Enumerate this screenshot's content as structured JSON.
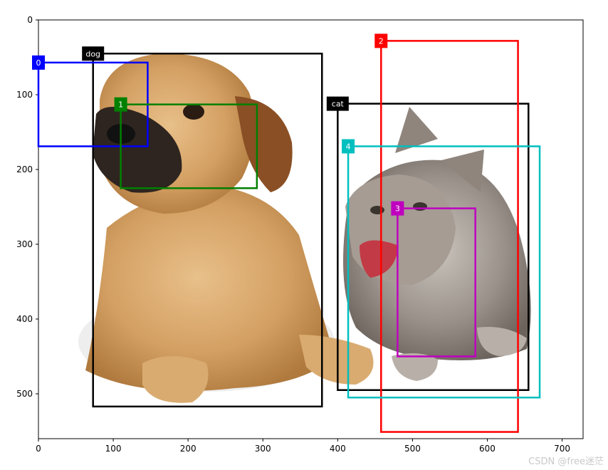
{
  "axes": {
    "xlim": [
      0,
      728
    ],
    "ylim": [
      560,
      0
    ],
    "x_ticks": [
      0,
      100,
      200,
      300,
      400,
      500,
      600,
      700
    ],
    "y_ticks": [
      0,
      100,
      200,
      300,
      400,
      500
    ]
  },
  "boxes": [
    {
      "label": "dog",
      "x0": 73,
      "y0": 45,
      "x1": 379,
      "y1": 517,
      "color": "#000000"
    },
    {
      "label": "cat",
      "x0": 400,
      "y0": 112,
      "x1": 655,
      "y1": 495,
      "color": "#000000"
    },
    {
      "label": "0",
      "x0": 0,
      "y0": 57,
      "x1": 146,
      "y1": 169,
      "color": "#0000ff"
    },
    {
      "label": "1",
      "x0": 110,
      "y0": 113,
      "x1": 292,
      "y1": 225,
      "color": "#008000"
    },
    {
      "label": "2",
      "x0": 458,
      "y0": 28,
      "x1": 641,
      "y1": 551,
      "color": "#ff0000"
    },
    {
      "label": "3",
      "x0": 480,
      "y0": 252,
      "x1": 584,
      "y1": 450,
      "color": "#bf00bf"
    },
    {
      "label": "4",
      "x0": 414,
      "y0": 169,
      "x1": 670,
      "y1": 505,
      "color": "#00bfbf"
    }
  ],
  "watermark": "CSDN @free迷茫"
}
